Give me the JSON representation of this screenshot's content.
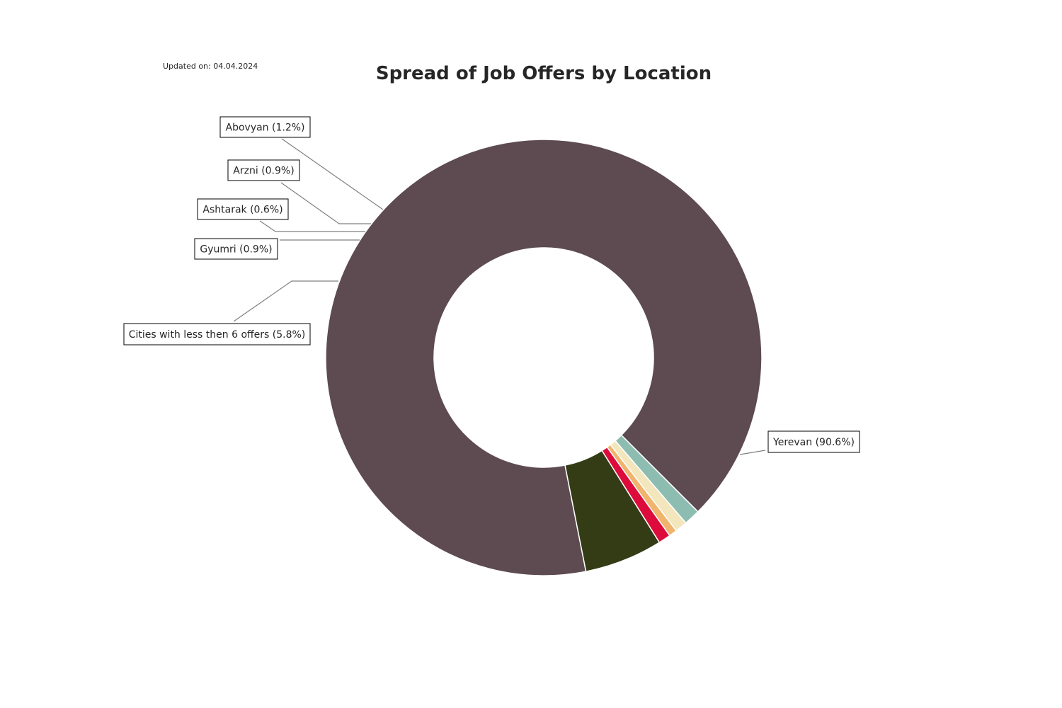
{
  "updated_note": "Updated on: 04.04.2024",
  "chart_data": {
    "type": "pie",
    "variant": "donut",
    "title": "Spread of Job Offers by Location",
    "slices": [
      {
        "label": "Yerevan (90.6%)",
        "name": "Yerevan",
        "value": 90.6,
        "color": "#5d4b51"
      },
      {
        "label": "Cities with less then 6 offers (5.8%)",
        "name": "Cities with less then 6 offers",
        "value": 5.8,
        "color": "#343c16"
      },
      {
        "label": "Gyumri (0.9%)",
        "name": "Gyumri",
        "value": 0.9,
        "color": "#dc0b3c"
      },
      {
        "label": "Ashtarak (0.6%)",
        "name": "Ashtarak",
        "value": 0.6,
        "color": "#f0b46c"
      },
      {
        "label": "Arzni (0.9%)",
        "name": "Arzni",
        "value": 0.9,
        "color": "#f3e6bc"
      },
      {
        "label": "Abovyan (1.2%)",
        "name": "Abovyan",
        "value": 1.2,
        "color": "#8dbdb1"
      }
    ],
    "legend": "none",
    "labels": "outside-callouts"
  }
}
